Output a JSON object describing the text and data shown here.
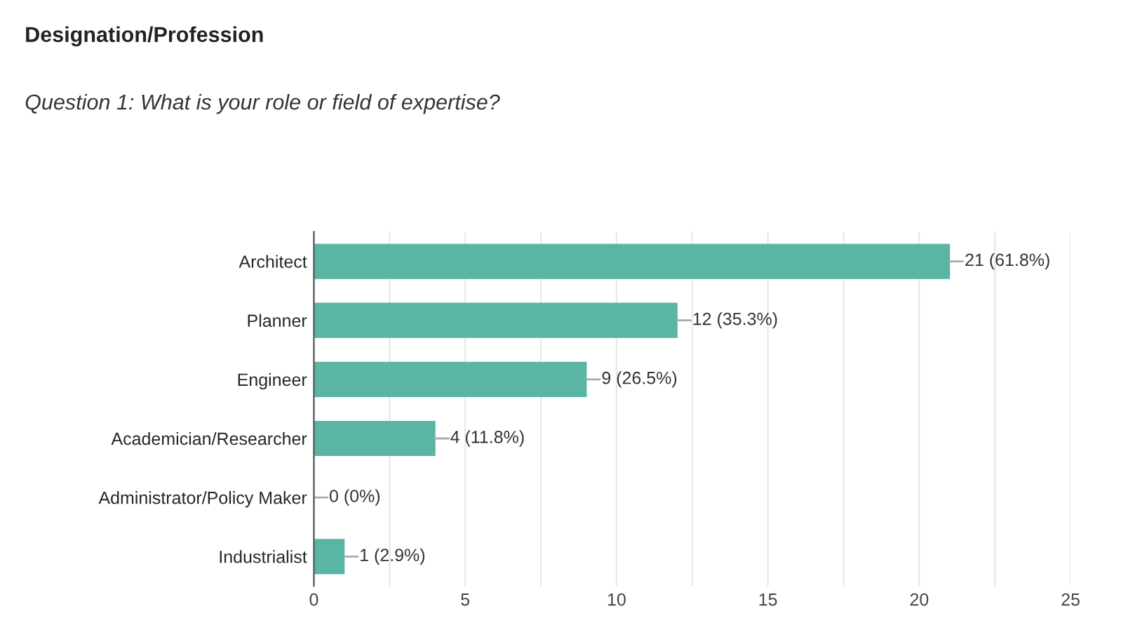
{
  "chart_data": {
    "type": "bar",
    "orientation": "horizontal",
    "title": "Designation/Profession",
    "subtitle": "Question 1: What is your role or field of expertise?",
    "categories": [
      "Architect",
      "Planner",
      "Engineer",
      "Academician/Researcher",
      "Administrator/Policy Maker",
      "Industrialist"
    ],
    "values": [
      21,
      12,
      9,
      4,
      0,
      1
    ],
    "value_labels": [
      "21 (61.8%)",
      "12 (35.3%)",
      "9 (26.5%)",
      "4 (11.8%)",
      "0 (0%)",
      "1 (2.9%)"
    ],
    "color": "#5ab5a5",
    "xlim": [
      0,
      25
    ],
    "xticks": [
      0,
      {
        "value": 2.5,
        "label": null
      },
      5,
      {
        "value": 7.5,
        "label": null
      },
      10,
      {
        "value": 12.5,
        "label": null
      },
      15,
      {
        "value": 17.5,
        "label": null
      },
      20,
      {
        "value": 22.5,
        "label": null
      },
      25
    ],
    "grid": "x"
  }
}
